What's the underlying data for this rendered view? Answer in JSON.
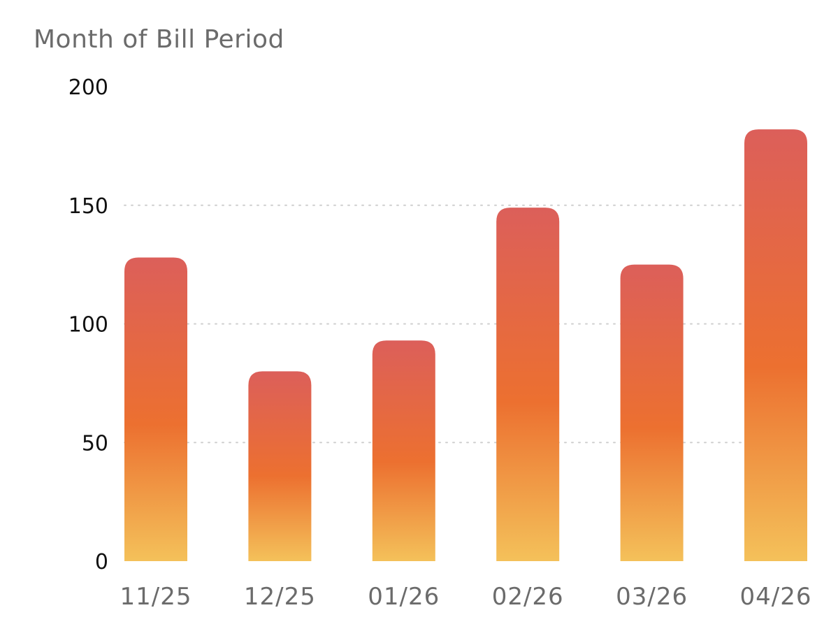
{
  "chart_data": {
    "type": "bar",
    "title": "Month of Bill Period",
    "categories": [
      "11/25",
      "12/25",
      "01/26",
      "02/26",
      "03/26",
      "04/26"
    ],
    "values": [
      128,
      80,
      93,
      149,
      125,
      182
    ],
    "ylim": [
      0,
      200
    ],
    "yticks": [
      0,
      50,
      100,
      150,
      200
    ],
    "grid": true,
    "colors": {
      "bar_top": "#dc5f5a",
      "bar_mid": "#ec7030",
      "bar_bottom": "#f4c15a",
      "grid": "#cfcfcf",
      "title": "#6b6b6b",
      "y_tick": "#111111",
      "x_tick": "#6b6b6b"
    }
  }
}
